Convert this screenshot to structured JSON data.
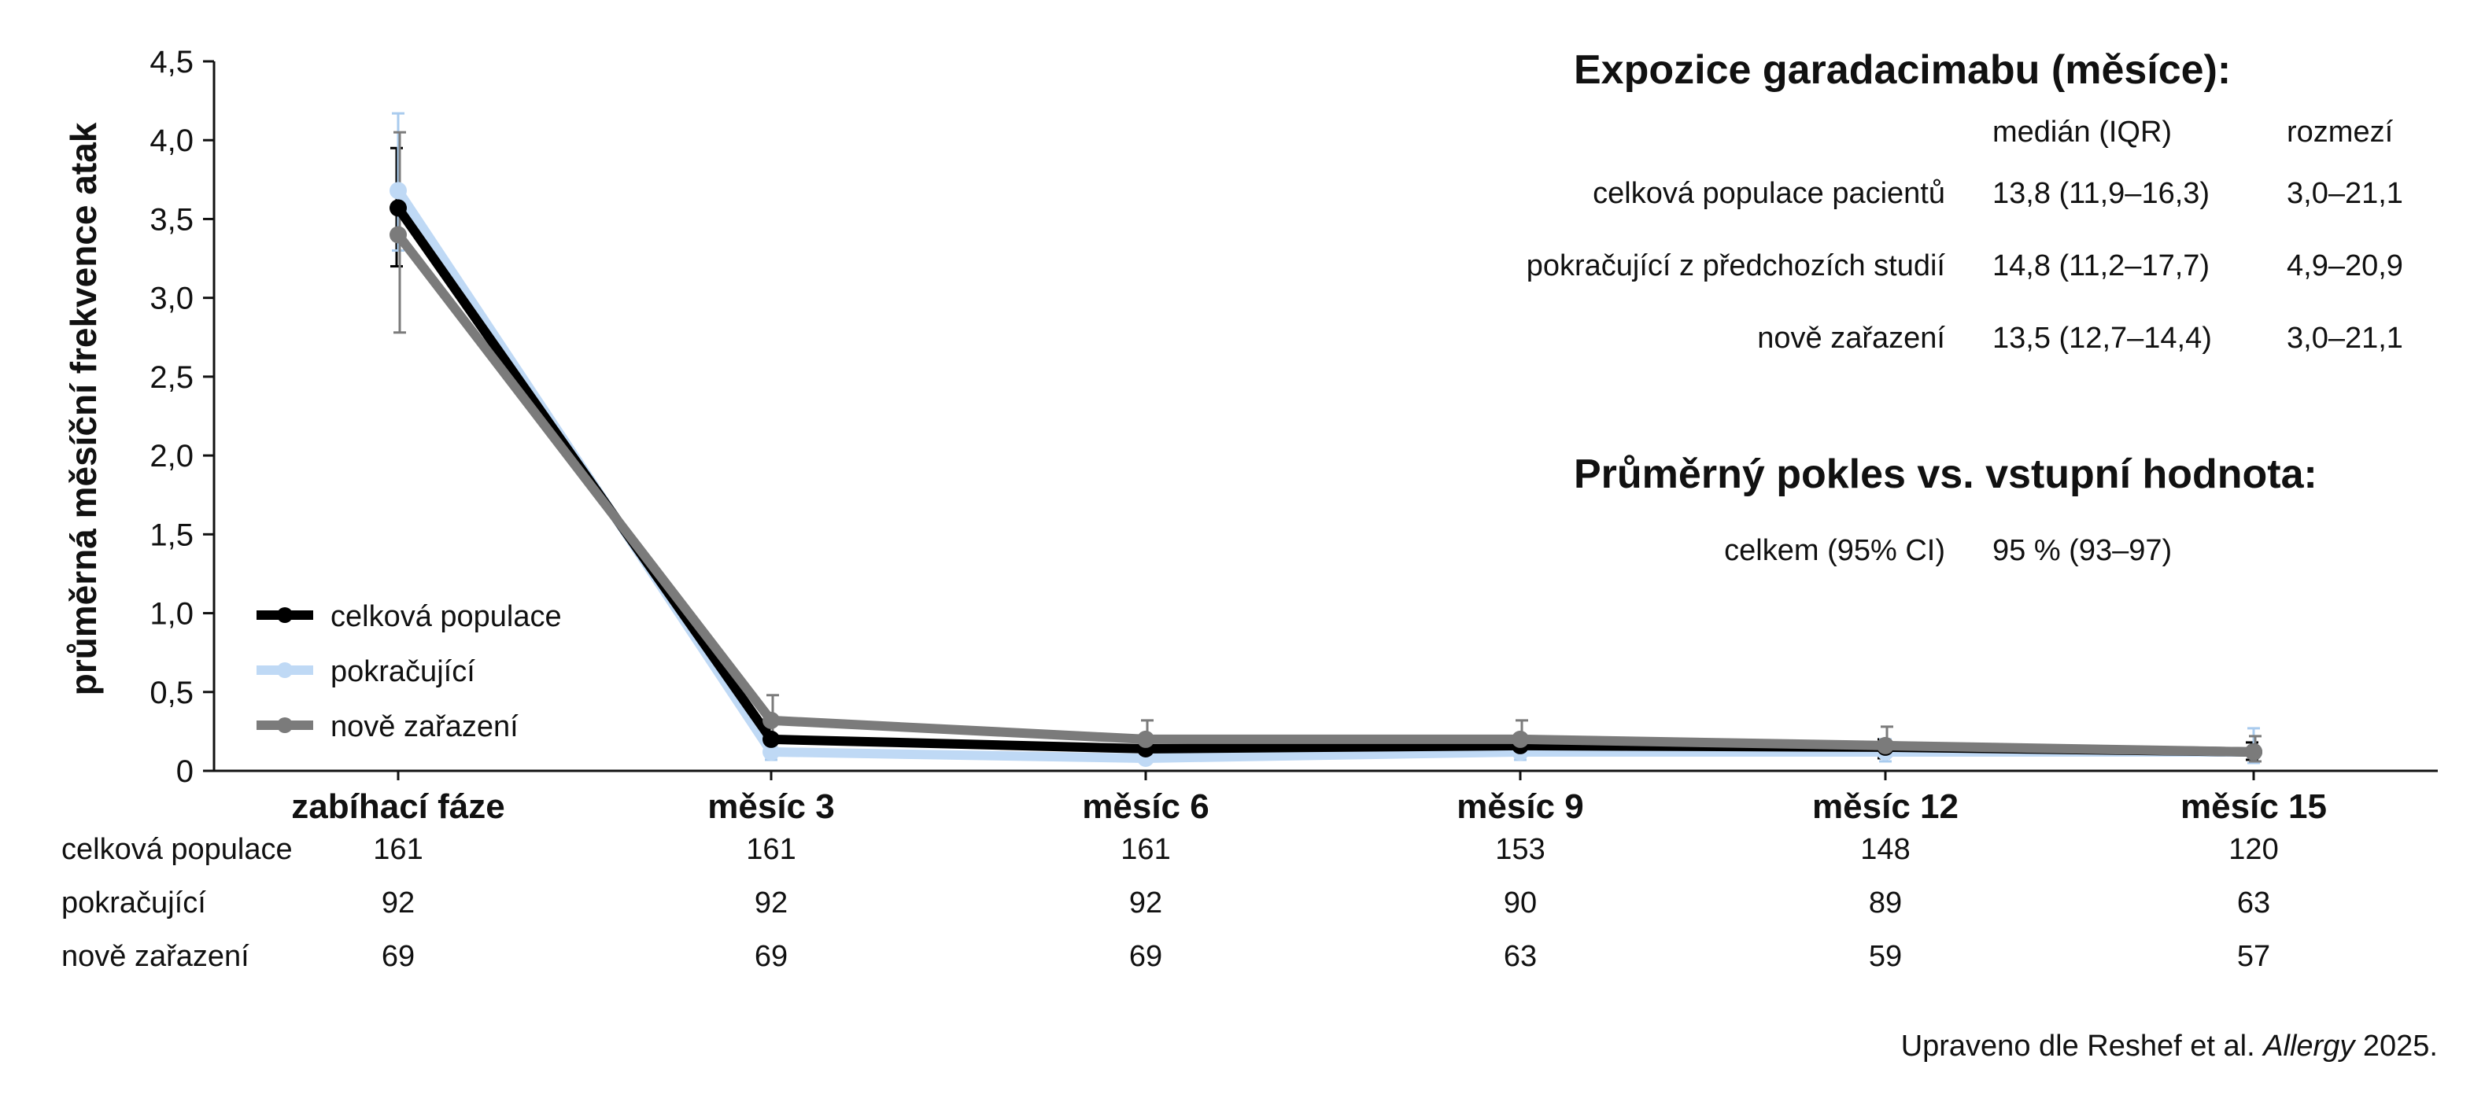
{
  "chart_data": {
    "type": "line",
    "title": "",
    "xlabel": "",
    "ylabel": "průměrná měsíční frekvence atak",
    "ylim": [
      0,
      4.5
    ],
    "yticks": [
      "0",
      "0,5",
      "1,0",
      "1,5",
      "2,0",
      "2,5",
      "3,0",
      "3,5",
      "4,0",
      "4,5"
    ],
    "categories": [
      "zabíhací fáze",
      "měsíc 3",
      "měsíc 6",
      "měsíc 9",
      "měsíc 12",
      "měsíc 15"
    ],
    "grid": false,
    "legend_position": "bottom-left",
    "series": [
      {
        "name": "celková populace",
        "color": "#000000",
        "values": [
          3.57,
          0.2,
          0.14,
          0.16,
          0.15,
          0.12
        ],
        "err_upper": [
          3.95,
          0.3,
          0.2,
          0.22,
          0.2,
          0.18
        ],
        "err_lower": [
          3.2,
          0.14,
          0.1,
          0.1,
          0.08,
          0.07
        ]
      },
      {
        "name": "pokračující",
        "color": "#bfd9f5",
        "values": [
          3.68,
          0.12,
          0.08,
          0.12,
          0.12,
          0.12
        ],
        "err_upper": [
          4.17,
          0.22,
          0.18,
          0.22,
          0.2,
          0.27
        ],
        "err_lower": [
          3.3,
          0.07,
          0.05,
          0.07,
          0.06,
          0.05
        ]
      },
      {
        "name": "nově zařazení",
        "color": "#7b7b7b",
        "values": [
          3.4,
          0.32,
          0.2,
          0.2,
          0.16,
          0.12
        ],
        "err_upper": [
          4.05,
          0.48,
          0.32,
          0.32,
          0.28,
          0.22
        ],
        "err_lower": [
          2.78,
          0.2,
          0.12,
          0.12,
          0.1,
          0.06
        ]
      }
    ],
    "n_table": [
      {
        "label": "celková populace",
        "values": [
          "161",
          "161",
          "161",
          "153",
          "148",
          "120"
        ]
      },
      {
        "label": "pokračující",
        "values": [
          "92",
          "92",
          "92",
          "90",
          "89",
          "63"
        ]
      },
      {
        "label": "nově zařazení",
        "values": [
          "69",
          "69",
          "69",
          "63",
          "59",
          "57"
        ]
      }
    ]
  },
  "exposure": {
    "title": "Expozice garadacimabu (měsíce):",
    "col_median": "medián (IQR)",
    "col_range": "rozmezí",
    "rows": [
      {
        "label": "celková populace pacientů",
        "median": "13,8 (11,9–16,3)",
        "range": "3,0–21,1"
      },
      {
        "label": "pokračující z předchozích studií",
        "median": "14,8 (11,2–17,7)",
        "range": "4,9–20,9"
      },
      {
        "label": "nově zařazení",
        "median": "13,5 (12,7–14,4)",
        "range": "3,0–21,1"
      }
    ]
  },
  "reduction": {
    "title": "Průměrný pokles vs. vstupní hodnota:",
    "label": "celkem (95% CI)",
    "value": "95 % (93–97)"
  },
  "source": {
    "prefix": "Upraveno dle Reshef et al. ",
    "journal": "Allergy",
    "suffix": " 2025."
  }
}
